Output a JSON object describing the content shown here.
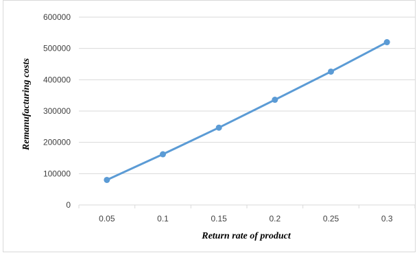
{
  "chart_data": {
    "type": "line",
    "title": "",
    "xlabel": "Return rate of product",
    "ylabel": "Remanufacturing costs",
    "categories": [
      "0.05",
      "0.1",
      "0.15",
      "0.2",
      "0.25",
      "0.3"
    ],
    "series": [
      {
        "values": [
          80000,
          162000,
          247000,
          336000,
          426000,
          520000
        ],
        "color": "#5b9bd5"
      }
    ],
    "ylim": [
      0,
      600000
    ],
    "yticks": [
      "0",
      "100000",
      "200000",
      "300000",
      "400000",
      "500000",
      "600000"
    ],
    "grid": true,
    "gridColor": "#d9d9d9",
    "legend": "none"
  }
}
